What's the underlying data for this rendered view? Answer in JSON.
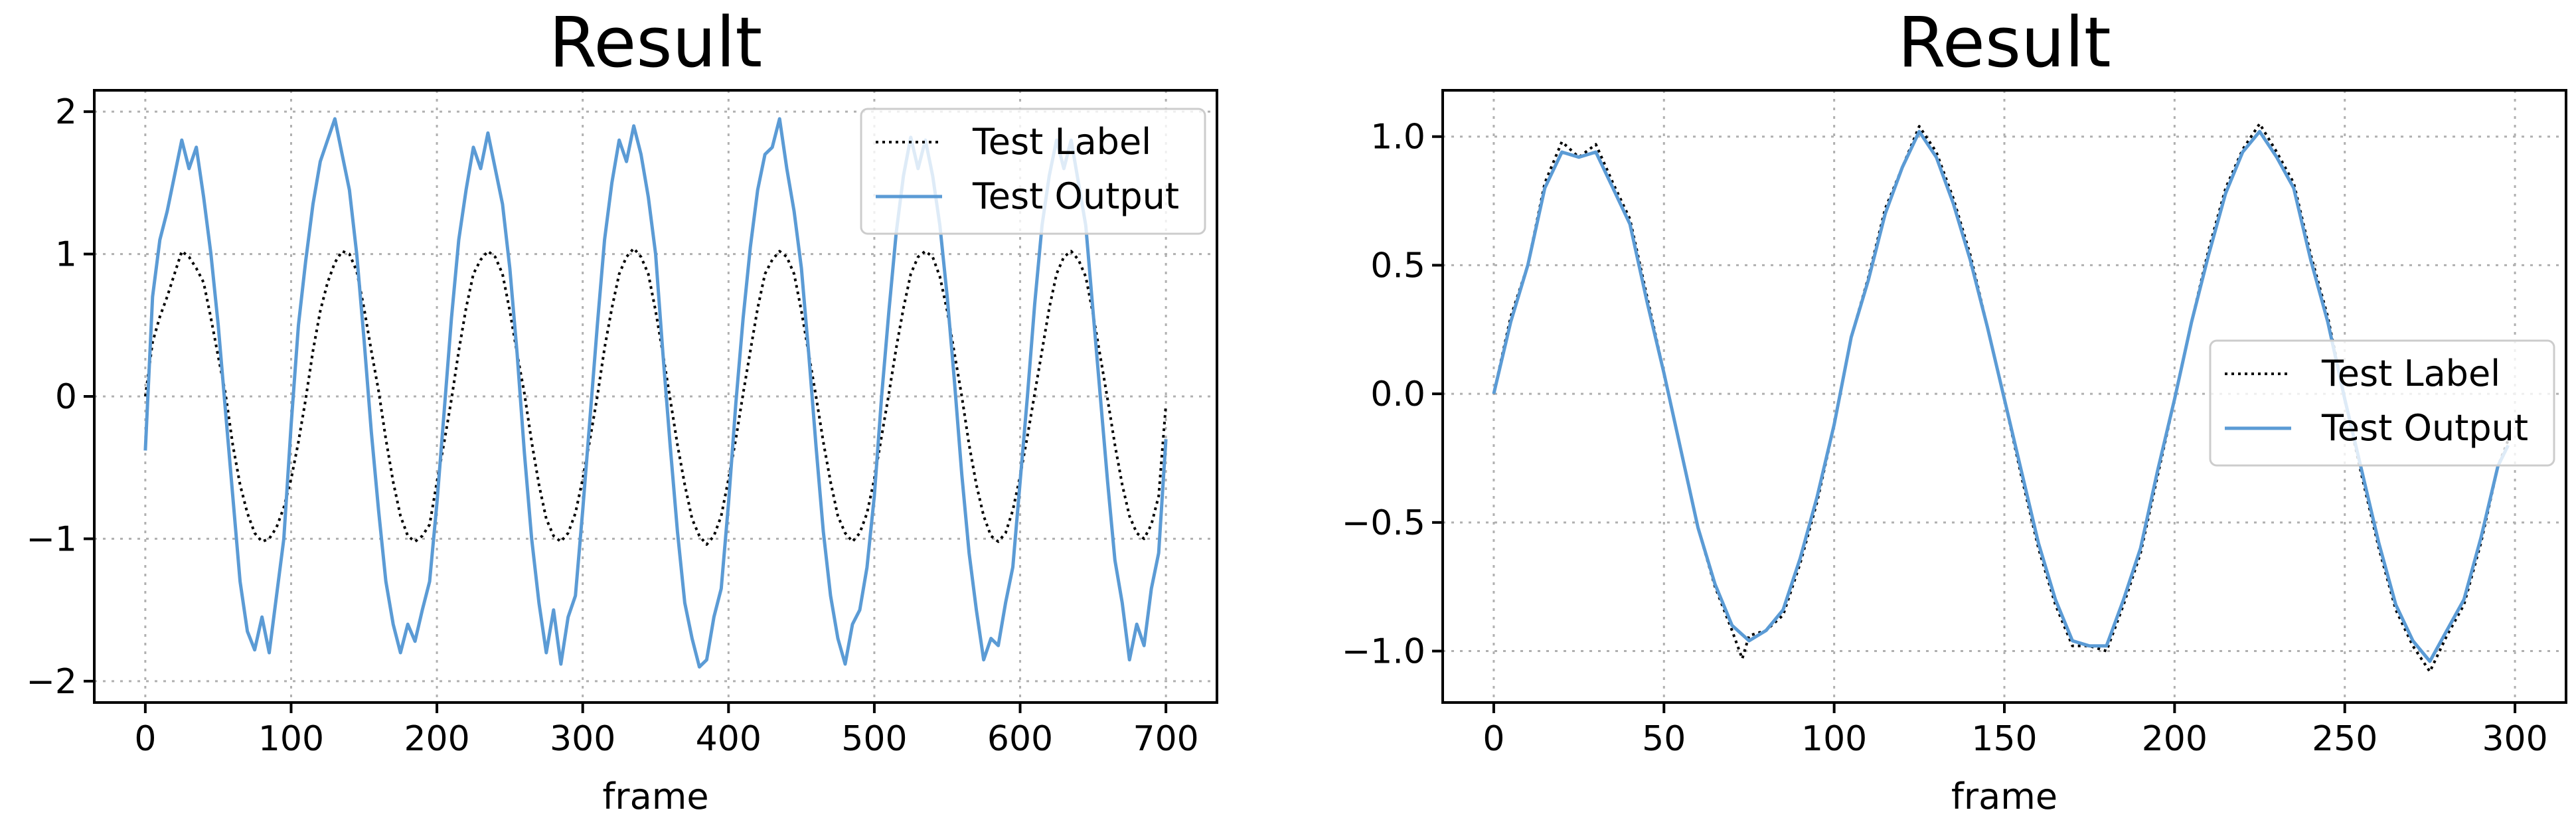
{
  "chart_data": [
    {
      "type": "line",
      "title": "Result",
      "xlabel": "frame",
      "ylabel": "",
      "xlim": [
        -35,
        735
      ],
      "ylim": [
        -2.15,
        2.15
      ],
      "xticks": [
        0,
        100,
        200,
        300,
        400,
        500,
        600,
        700
      ],
      "yticks": [
        -2,
        -1,
        0,
        1,
        2
      ],
      "xtick_labels": [
        "0",
        "100",
        "200",
        "300",
        "400",
        "500",
        "600",
        "700"
      ],
      "ytick_labels": [
        "−2",
        "−1",
        "0",
        "1",
        "2"
      ],
      "grid": true,
      "legend_position": "upper right",
      "series": [
        {
          "name": "Test Label",
          "color": "#000000",
          "style": "dotted",
          "x": [
            0,
            5,
            10,
            15,
            20,
            25,
            30,
            35,
            40,
            45,
            50,
            55,
            60,
            65,
            70,
            75,
            80,
            85,
            90,
            95,
            100,
            105,
            110,
            115,
            120,
            125,
            130,
            135,
            140,
            145,
            150,
            155,
            160,
            165,
            170,
            175,
            180,
            185,
            190,
            195,
            200,
            205,
            210,
            215,
            220,
            225,
            230,
            235,
            240,
            245,
            250,
            255,
            260,
            265,
            270,
            275,
            280,
            285,
            290,
            295,
            300,
            305,
            310,
            315,
            320,
            325,
            330,
            335,
            340,
            345,
            350,
            355,
            360,
            365,
            370,
            375,
            380,
            385,
            390,
            395,
            400,
            405,
            410,
            415,
            420,
            425,
            430,
            435,
            440,
            445,
            450,
            455,
            460,
            465,
            470,
            475,
            480,
            485,
            490,
            495,
            500,
            505,
            510,
            515,
            520,
            525,
            530,
            535,
            540,
            545,
            550,
            555,
            560,
            565,
            570,
            575,
            580,
            585,
            590,
            595,
            600,
            605,
            610,
            615,
            620,
            625,
            630,
            635,
            640,
            645,
            650,
            655,
            660,
            665,
            670,
            675,
            680,
            685,
            690,
            695,
            700
          ],
          "values": [
            0.0,
            0.38,
            0.56,
            0.7,
            0.86,
            1.02,
            0.98,
            0.9,
            0.8,
            0.55,
            0.28,
            0.02,
            -0.34,
            -0.62,
            -0.82,
            -0.96,
            -1.02,
            -1.0,
            -0.92,
            -0.78,
            -0.58,
            -0.32,
            -0.02,
            0.32,
            0.6,
            0.8,
            0.94,
            1.02,
            1.0,
            0.88,
            0.62,
            0.32,
            0.04,
            -0.3,
            -0.6,
            -0.84,
            -0.98,
            -1.02,
            -0.98,
            -0.9,
            -0.6,
            -0.32,
            -0.02,
            0.32,
            0.62,
            0.86,
            0.96,
            1.02,
            0.98,
            0.86,
            0.6,
            0.3,
            0.02,
            -0.32,
            -0.62,
            -0.86,
            -0.98,
            -1.02,
            -0.96,
            -0.82,
            -0.58,
            -0.3,
            0.0,
            0.34,
            0.62,
            0.86,
            0.98,
            1.04,
            0.98,
            0.86,
            0.6,
            0.3,
            -0.02,
            -0.34,
            -0.62,
            -0.86,
            -0.98,
            -1.04,
            -0.98,
            -0.84,
            -0.58,
            -0.3,
            0.02,
            0.32,
            0.62,
            0.86,
            0.96,
            1.02,
            0.98,
            0.86,
            0.6,
            0.3,
            0.0,
            -0.32,
            -0.6,
            -0.84,
            -0.96,
            -1.02,
            -0.96,
            -0.82,
            -0.58,
            -0.28,
            0.02,
            0.34,
            0.62,
            0.86,
            0.98,
            1.02,
            0.98,
            0.84,
            0.6,
            0.3,
            0.0,
            -0.34,
            -0.62,
            -0.84,
            -0.98,
            -1.02,
            -0.96,
            -0.8,
            -0.56,
            -0.28,
            0.02,
            0.32,
            0.62,
            0.86,
            0.98,
            1.02,
            0.96,
            0.84,
            0.58,
            0.28,
            -0.02,
            -0.34,
            -0.62,
            -0.84,
            -0.96,
            -1.0,
            -0.9,
            -0.7,
            -0.06
          ]
        },
        {
          "name": "Test Output",
          "color": "#5b9bd5",
          "style": "solid",
          "x": [
            0,
            5,
            10,
            15,
            20,
            25,
            30,
            35,
            40,
            45,
            50,
            55,
            60,
            65,
            70,
            75,
            80,
            85,
            90,
            95,
            100,
            105,
            110,
            115,
            120,
            125,
            130,
            135,
            140,
            145,
            150,
            155,
            160,
            165,
            170,
            175,
            180,
            185,
            190,
            195,
            200,
            205,
            210,
            215,
            220,
            225,
            230,
            235,
            240,
            245,
            250,
            255,
            260,
            265,
            270,
            275,
            280,
            285,
            290,
            295,
            300,
            305,
            310,
            315,
            320,
            325,
            330,
            335,
            340,
            345,
            350,
            355,
            360,
            365,
            370,
            375,
            380,
            385,
            390,
            395,
            400,
            405,
            410,
            415,
            420,
            425,
            430,
            435,
            440,
            445,
            450,
            455,
            460,
            465,
            470,
            475,
            480,
            485,
            490,
            495,
            500,
            505,
            510,
            515,
            520,
            525,
            530,
            535,
            540,
            545,
            550,
            555,
            560,
            565,
            570,
            575,
            580,
            585,
            590,
            595,
            600,
            605,
            610,
            615,
            620,
            625,
            630,
            635,
            640,
            645,
            650,
            655,
            660,
            665,
            670,
            675,
            680,
            685,
            690,
            695,
            700
          ],
          "values": [
            -0.38,
            0.7,
            1.1,
            1.3,
            1.55,
            1.8,
            1.6,
            1.75,
            1.4,
            1.0,
            0.5,
            -0.1,
            -0.7,
            -1.3,
            -1.65,
            -1.78,
            -1.55,
            -1.8,
            -1.4,
            -1.0,
            -0.2,
            0.5,
            0.95,
            1.35,
            1.65,
            1.8,
            1.95,
            1.7,
            1.45,
            1.0,
            0.4,
            -0.25,
            -0.8,
            -1.3,
            -1.6,
            -1.8,
            -1.6,
            -1.72,
            -1.5,
            -1.3,
            -0.75,
            -0.1,
            0.55,
            1.1,
            1.45,
            1.75,
            1.6,
            1.85,
            1.6,
            1.35,
            0.9,
            0.3,
            -0.4,
            -1.0,
            -1.45,
            -1.8,
            -1.5,
            -1.88,
            -1.55,
            -1.4,
            -0.8,
            -0.15,
            0.5,
            1.1,
            1.5,
            1.8,
            1.65,
            1.9,
            1.7,
            1.4,
            1.0,
            0.3,
            -0.35,
            -0.95,
            -1.45,
            -1.7,
            -1.9,
            -1.85,
            -1.55,
            -1.35,
            -0.75,
            -0.05,
            0.55,
            1.05,
            1.45,
            1.7,
            1.75,
            1.95,
            1.6,
            1.3,
            0.9,
            0.3,
            -0.35,
            -0.95,
            -1.4,
            -1.7,
            -1.88,
            -1.6,
            -1.5,
            -1.2,
            -0.7,
            0.0,
            0.6,
            1.15,
            1.55,
            1.82,
            1.6,
            1.8,
            1.55,
            1.2,
            0.7,
            0.1,
            -0.55,
            -1.1,
            -1.5,
            -1.85,
            -1.7,
            -1.75,
            -1.45,
            -1.2,
            -0.6,
            0.0,
            0.65,
            1.2,
            1.55,
            1.8,
            1.6,
            1.8,
            1.5,
            1.2,
            0.6,
            0.0,
            -0.6,
            -1.15,
            -1.45,
            -1.85,
            -1.6,
            -1.75,
            -1.35,
            -1.1,
            -0.3
          ]
        }
      ]
    },
    {
      "type": "line",
      "title": "Result",
      "xlabel": "frame",
      "ylabel": "",
      "xlim": [
        -15,
        315
      ],
      "ylim": [
        -1.2,
        1.18
      ],
      "xticks": [
        0,
        50,
        100,
        150,
        200,
        250,
        300
      ],
      "yticks": [
        -1.0,
        -0.5,
        0.0,
        0.5,
        1.0
      ],
      "xtick_labels": [
        "0",
        "50",
        "100",
        "150",
        "200",
        "250",
        "300"
      ],
      "ytick_labels": [
        "−1.0",
        "−0.5",
        "0.0",
        "0.5",
        "1.0"
      ],
      "grid": true,
      "legend_position": "center right",
      "series": [
        {
          "name": "Test Label",
          "color": "#000000",
          "style": "dotted",
          "x": [
            0,
            5,
            10,
            15,
            20,
            25,
            30,
            35,
            40,
            45,
            50,
            55,
            60,
            65,
            70,
            73,
            75,
            80,
            85,
            90,
            95,
            100,
            105,
            110,
            115,
            120,
            125,
            130,
            135,
            140,
            145,
            150,
            155,
            160,
            165,
            170,
            175,
            180,
            185,
            190,
            195,
            200,
            205,
            210,
            215,
            220,
            225,
            230,
            235,
            240,
            245,
            250,
            255,
            260,
            265,
            270,
            275,
            280,
            285,
            290,
            295,
            298
          ],
          "values": [
            0.0,
            0.3,
            0.5,
            0.82,
            0.98,
            0.92,
            0.97,
            0.82,
            0.68,
            0.38,
            0.08,
            -0.22,
            -0.52,
            -0.75,
            -0.92,
            -1.03,
            -0.94,
            -0.92,
            -0.86,
            -0.66,
            -0.42,
            -0.12,
            0.22,
            0.45,
            0.72,
            0.88,
            1.04,
            0.94,
            0.76,
            0.54,
            0.26,
            -0.02,
            -0.32,
            -0.6,
            -0.82,
            -0.98,
            -0.98,
            -1.0,
            -0.82,
            -0.62,
            -0.32,
            -0.02,
            0.28,
            0.56,
            0.8,
            0.95,
            1.05,
            0.94,
            0.82,
            0.54,
            0.3,
            -0.02,
            -0.32,
            -0.6,
            -0.84,
            -0.98,
            -1.08,
            -0.94,
            -0.82,
            -0.58,
            -0.28,
            -0.18
          ]
        },
        {
          "name": "Test Output",
          "color": "#5b9bd5",
          "style": "solid",
          "x": [
            0,
            5,
            10,
            15,
            20,
            25,
            30,
            35,
            40,
            45,
            50,
            55,
            60,
            65,
            70,
            75,
            80,
            85,
            90,
            95,
            100,
            105,
            110,
            115,
            120,
            125,
            130,
            135,
            140,
            145,
            150,
            155,
            160,
            165,
            170,
            175,
            180,
            185,
            190,
            195,
            200,
            205,
            210,
            215,
            220,
            225,
            230,
            235,
            240,
            245,
            250,
            255,
            260,
            265,
            270,
            275,
            280,
            285,
            290,
            295,
            298
          ],
          "values": [
            0.0,
            0.28,
            0.5,
            0.8,
            0.94,
            0.92,
            0.94,
            0.8,
            0.66,
            0.36,
            0.08,
            -0.22,
            -0.52,
            -0.74,
            -0.9,
            -0.96,
            -0.92,
            -0.84,
            -0.64,
            -0.4,
            -0.12,
            0.22,
            0.44,
            0.7,
            0.88,
            1.02,
            0.92,
            0.74,
            0.52,
            0.26,
            -0.02,
            -0.3,
            -0.58,
            -0.8,
            -0.96,
            -0.98,
            -0.98,
            -0.8,
            -0.6,
            -0.3,
            -0.02,
            0.28,
            0.54,
            0.78,
            0.94,
            1.02,
            0.92,
            0.8,
            0.52,
            0.28,
            -0.02,
            -0.3,
            -0.58,
            -0.82,
            -0.96,
            -1.04,
            -0.92,
            -0.8,
            -0.56,
            -0.28,
            -0.2
          ]
        }
      ]
    }
  ]
}
